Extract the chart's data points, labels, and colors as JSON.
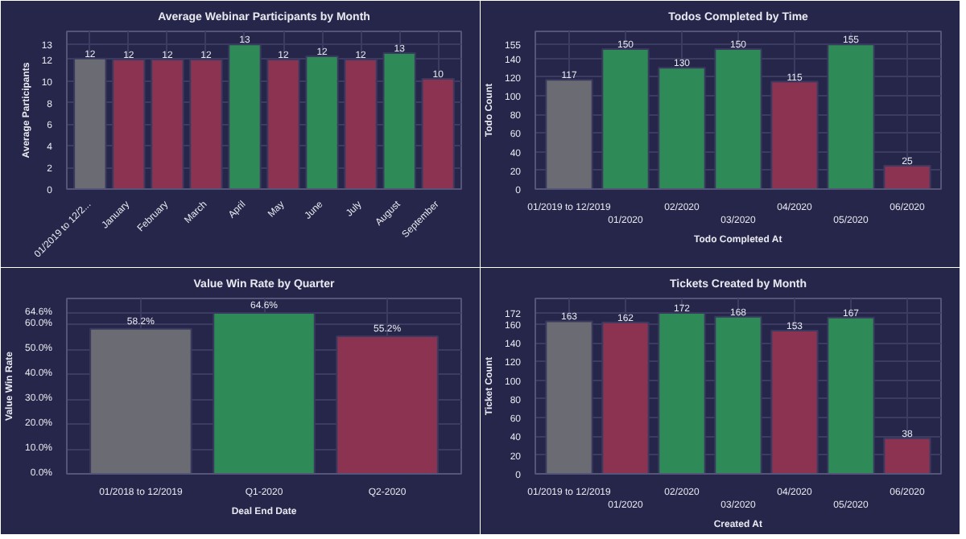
{
  "chart_data": [
    {
      "type": "bar",
      "title": "Average Webinar Participants by Month",
      "ylabel": "Average Participants",
      "categories": [
        "01/2019 to 12/2...",
        "January",
        "February",
        "March",
        "April",
        "May",
        "June",
        "July",
        "August",
        "September"
      ],
      "values": [
        12.1,
        12.0,
        12.0,
        12.0,
        13.4,
        12.0,
        12.3,
        12.0,
        12.6,
        10.2
      ],
      "colors": [
        "#6b6b73",
        "#8b3350",
        "#8b3350",
        "#8b3350",
        "#2e8b57",
        "#8b3350",
        "#2e8b57",
        "#8b3350",
        "#2e8b57",
        "#8b3350"
      ],
      "value_labels": [
        "12",
        "12",
        "12",
        "12",
        "13",
        "12",
        "12",
        "12",
        "13",
        "10"
      ],
      "ylim": [
        0,
        13.4
      ],
      "yticks": [
        0,
        2,
        4,
        6,
        8,
        10,
        12,
        {
          "value": 13.4,
          "label": "13"
        }
      ],
      "grid": true
    },
    {
      "type": "bar",
      "title": "Todos Completed by Time",
      "xlabel": "Todo Completed At",
      "ylabel": "Todo Count",
      "categories": [
        "01/2019 to 12/2019",
        "01/2020",
        "02/2020",
        "03/2020",
        "04/2020",
        "05/2020",
        "06/2020"
      ],
      "values": [
        117,
        150,
        130,
        150,
        115,
        155,
        25
      ],
      "colors": [
        "#6b6b73",
        "#2e8b57",
        "#2e8b57",
        "#2e8b57",
        "#8b3350",
        "#2e8b57",
        "#8b3350"
      ],
      "data_labels": true,
      "ylim": [
        0,
        155
      ],
      "yticks": [
        0,
        20,
        40,
        60,
        80,
        100,
        120,
        140,
        155
      ],
      "grid": true
    },
    {
      "type": "bar",
      "title": "Value Win Rate by Quarter",
      "xlabel": "Deal End Date",
      "ylabel": "Value Win Rate",
      "categories": [
        "01/2018 to 12/2019",
        "Q1-2020",
        "Q2-2020"
      ],
      "values": [
        58.2,
        64.6,
        55.2
      ],
      "colors": [
        "#6b6b73",
        "#2e8b57",
        "#8b3350"
      ],
      "value_labels": [
        "58.2%",
        "64.6%",
        "55.2%"
      ],
      "ylim": [
        0,
        64.6
      ],
      "yticks": [
        {
          "value": 0,
          "label": "0.0%"
        },
        {
          "value": 10,
          "label": "10.0%"
        },
        {
          "value": 20,
          "label": "20.0%"
        },
        {
          "value": 30,
          "label": "30.0%"
        },
        {
          "value": 40,
          "label": "40.0%"
        },
        {
          "value": 50,
          "label": "50.0%"
        },
        {
          "value": 60,
          "label": "60.0%"
        },
        {
          "value": 64.6,
          "label": "64.6%"
        }
      ],
      "grid": true
    },
    {
      "type": "bar",
      "title": "Tickets Created by Month",
      "xlabel": "Created At",
      "ylabel": "Ticket Count",
      "categories": [
        "01/2019 to 12/2019",
        "01/2020",
        "02/2020",
        "03/2020",
        "04/2020",
        "05/2020",
        "06/2020"
      ],
      "values": [
        163,
        162,
        172,
        168,
        153,
        167,
        38
      ],
      "colors": [
        "#6b6b73",
        "#8b3350",
        "#2e8b57",
        "#2e8b57",
        "#8b3350",
        "#2e8b57",
        "#8b3350"
      ],
      "data_labels": true,
      "ylim": [
        0,
        172
      ],
      "yticks": [
        0,
        20,
        40,
        60,
        80,
        100,
        120,
        140,
        160,
        172
      ],
      "grid": true
    }
  ]
}
